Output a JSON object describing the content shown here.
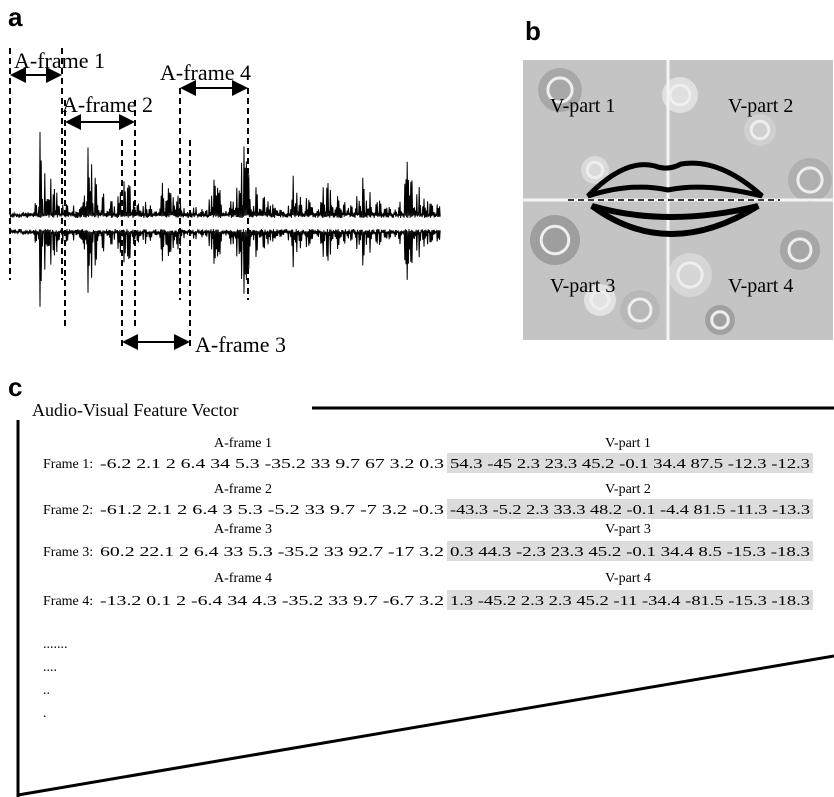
{
  "panels": {
    "a": {
      "label": "a",
      "frames": [
        "A-frame 1",
        "A-frame 2",
        "A-frame 3",
        "A-frame 4"
      ]
    },
    "b": {
      "label": "b",
      "parts": [
        "V-part 1",
        "V-part 2",
        "V-part 3",
        "V-part 4"
      ]
    },
    "c": {
      "label": "c",
      "title": "Audio-Visual Feature Vector",
      "rows": [
        {
          "frame": "Frame 1:",
          "a_label": "A-frame 1",
          "v_label": "V-part 1",
          "audio": "-6.2 2.1 2 6.4 34 5.3 -35.2 33 9.7 67 3.2 0.3",
          "visual": "54.3 -45 2.3 23.3 45.2 -0.1 34.4 87.5 -12.3 -12.3"
        },
        {
          "frame": "Frame 2:",
          "a_label": "A-frame 2",
          "v_label": "V-part 2",
          "audio": "-61.2 2.1 2 6.4 3 5.3 -5.2 33 9.7 -7 3.2 -0.3",
          "visual": "-43.3 -5.2 2.3 33.3 48.2 -0.1 -4.4 81.5 -11.3 -13.3"
        },
        {
          "frame": "Frame 3:",
          "a_label": "A-frame 3",
          "v_label": "V-part 3",
          "audio": "60.2 22.1 2 6.4 33 5.3 -35.2 33 92.7 -17 3.2",
          "visual": "0.3 44.3 -2.3 23.3 45.2 -0.1 34.4 8.5 -15.3 -18.3"
        },
        {
          "frame": "Frame 4:",
          "a_label": "A-frame 4",
          "v_label": "V-part 4",
          "audio": "-13.2 0.1 2 -6.4 34 4.3 -35.2 33 9.7 -6.7 3.2",
          "visual": "1.3 -45.2 2.3 2.3 45.2 -11 -34.4 -81.5 -15.3 -18.3"
        }
      ],
      "continuation": [
        ".......",
        "....",
        "..",
        "."
      ]
    }
  }
}
